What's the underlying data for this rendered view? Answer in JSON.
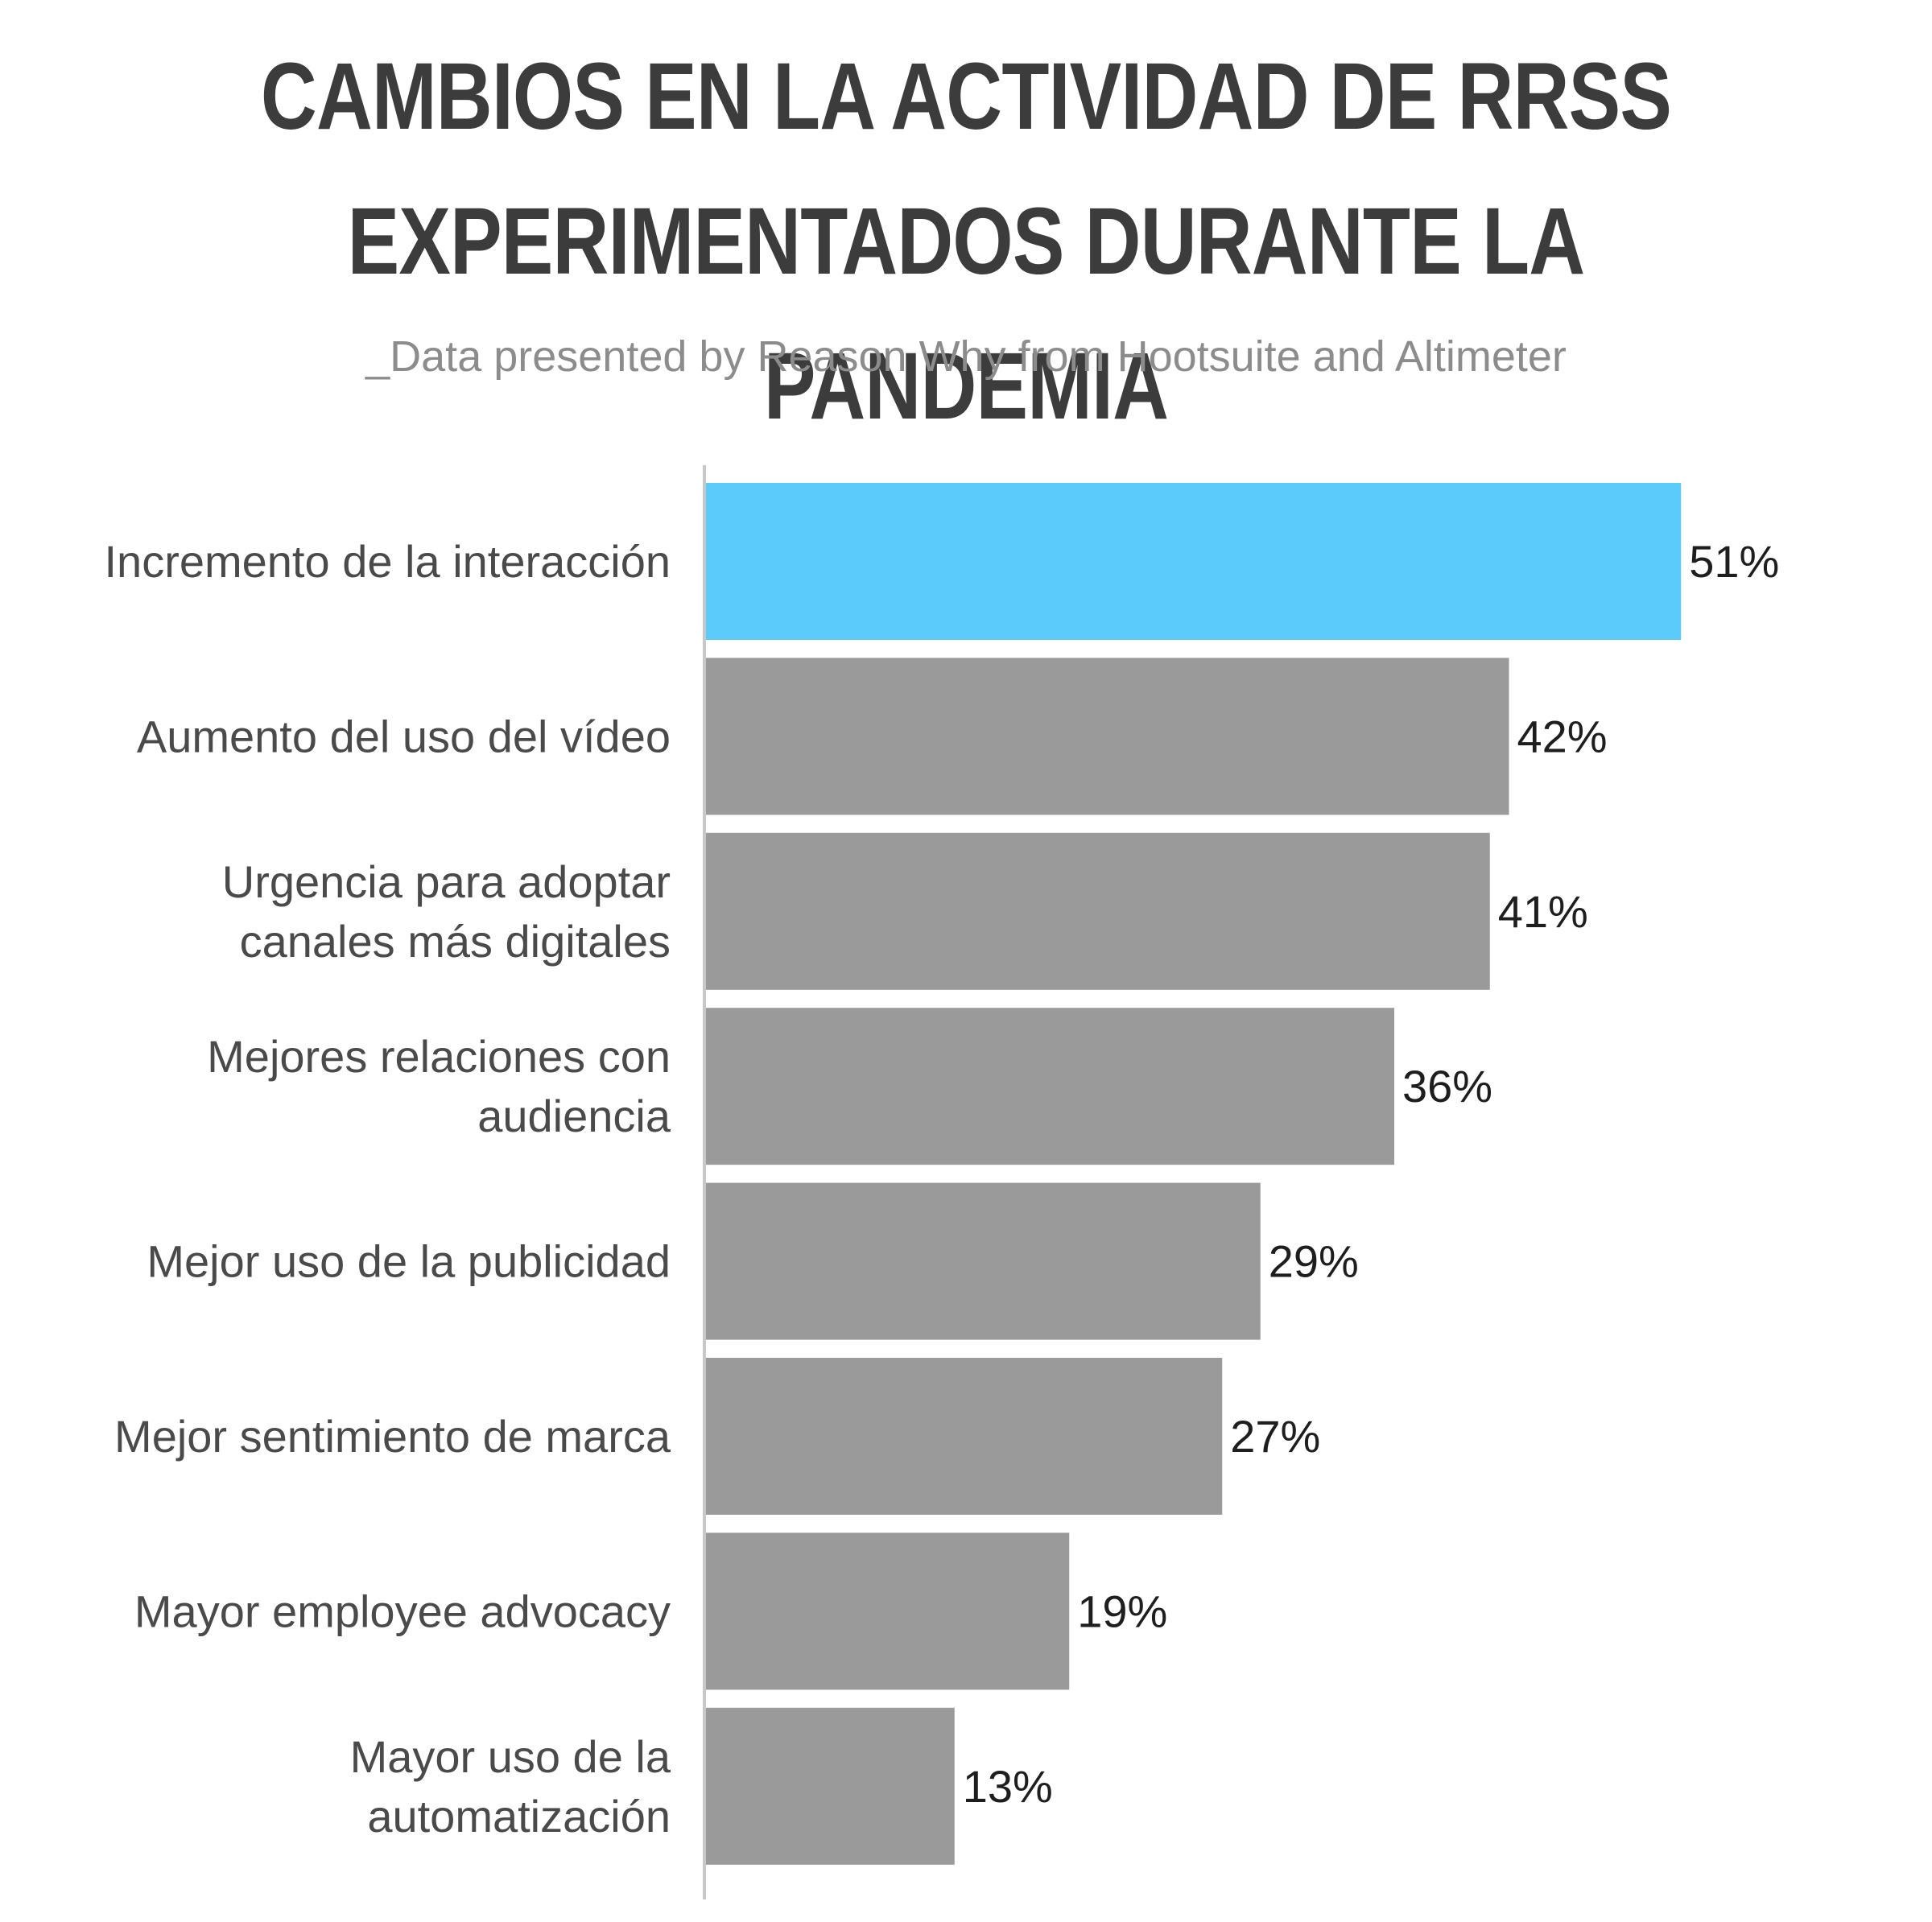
{
  "chart_data": {
    "type": "bar",
    "orientation": "horizontal",
    "title_lines": [
      "CAMBIOS EN LA ACTIVIDAD DE RRSS",
      "EXPERIMENTADOS DURANTE LA PANDEMIA"
    ],
    "subtitle": "_Data presented by Reason Why from Hootsuite and Altimeter",
    "categories": [
      [
        "Incremento de la interacción"
      ],
      [
        "Aumento del uso del vídeo"
      ],
      [
        "Urgencia para adoptar",
        "canales más digitales"
      ],
      [
        "Mejores relaciones con",
        "audiencia"
      ],
      [
        "Mejor uso de la publicidad"
      ],
      [
        "Mejor sentimiento de marca"
      ],
      [
        "Mayor employee advocacy"
      ],
      [
        "Mayor uso de la",
        "automatización"
      ]
    ],
    "values": [
      51,
      42,
      41,
      36,
      29,
      27,
      19,
      13
    ],
    "value_labels": [
      "51%",
      "42%",
      "41%",
      "36%",
      "29%",
      "27%",
      "19%",
      "13%"
    ],
    "highlight_index": 0,
    "colors": {
      "highlight": "#5bcbfc",
      "bar": "#9a9a9a",
      "axis": "#c8c8c8",
      "title": "#3c3c3c",
      "subtitle": "#8c8c8c"
    },
    "grid": false,
    "legend": "none"
  }
}
